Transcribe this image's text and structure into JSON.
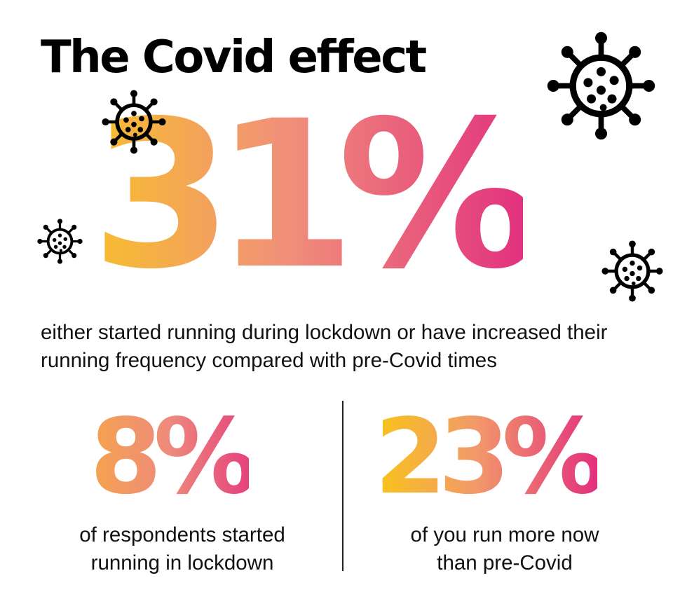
{
  "title": "The Covid effect",
  "hero": {
    "value": "31%",
    "caption": "either started running during lockdown or have increased their running frequency compared with pre-Covid times"
  },
  "stats": [
    {
      "value": "8%",
      "caption_line1": "of respondents started",
      "caption_line2": "running in lockdown"
    },
    {
      "value": "23%",
      "caption_line1": "of you run more now",
      "caption_line2": "than pre-Covid"
    }
  ],
  "icons": [
    "virus-icon",
    "virus-icon",
    "virus-icon",
    "virus-icon"
  ],
  "colors": {
    "text": "#111111",
    "gradient_start": "#f7be2e",
    "gradient_mid": "#f0907a",
    "gradient_end": "#e2327e"
  }
}
